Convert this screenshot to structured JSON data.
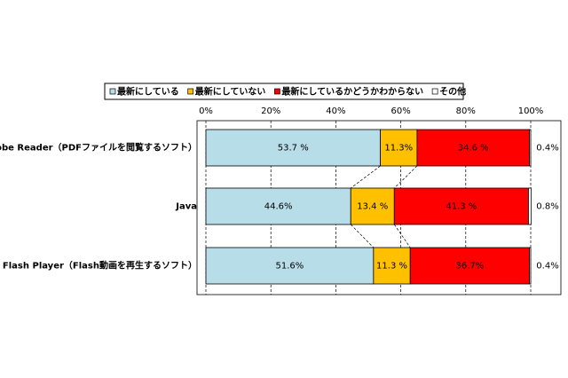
{
  "chart_data": {
    "type": "stacked-barh",
    "categories": [
      "Adobe Reader（PDFファイルを閲覧するソフト）",
      "Java",
      "Adobe Flash Player（Flash動画を再生するソフト）"
    ],
    "series": [
      {
        "name": "最新にしている",
        "color": "#b7dde8",
        "values": [
          53.7,
          44.6,
          51.6
        ],
        "value_labels": [
          "53.7 %",
          "44.6%",
          "51.6%"
        ]
      },
      {
        "name": "最新にしていない",
        "color": "#ffc000",
        "values": [
          11.3,
          13.4,
          11.3
        ],
        "value_labels": [
          "11.3%",
          "13.4 %",
          "11.3 %"
        ]
      },
      {
        "name": "最新にしているかどうかわからない",
        "color": "#ff0000",
        "values": [
          34.6,
          41.3,
          36.7
        ],
        "value_labels": [
          "34.6 %",
          "41.3 %",
          "36.7%"
        ]
      },
      {
        "name": "その他",
        "color": "#ffffff",
        "values": [
          0.4,
          0.8,
          0.4
        ],
        "value_labels": [
          "0.4%",
          "0.8%",
          "0.4%"
        ]
      }
    ],
    "xlim": [
      0,
      100
    ],
    "xticks": [
      {
        "value": 0,
        "label": "0%"
      },
      {
        "value": 20,
        "label": "20%"
      },
      {
        "value": 40,
        "label": "40%"
      },
      {
        "value": 60,
        "label": "60%"
      },
      {
        "value": 80,
        "label": "80%"
      },
      {
        "value": 100,
        "label": "100%"
      }
    ],
    "grid": true
  }
}
